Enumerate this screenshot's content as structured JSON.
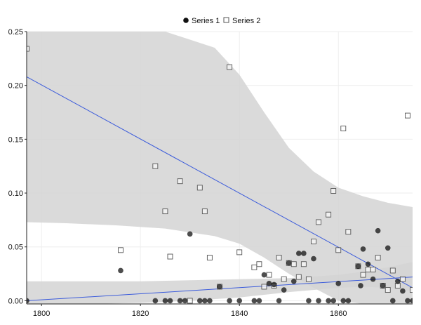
{
  "chart_data": {
    "type": "scatter",
    "legend_position": "top-center",
    "grid": true,
    "xlim": [
      1797,
      1875
    ],
    "ylim": [
      -0.003,
      0.25
    ],
    "x_ticks": [
      1800,
      1820,
      1840,
      1860
    ],
    "y_ticks": [
      0.0,
      0.05,
      0.1,
      0.15,
      0.2,
      0.25
    ],
    "x_tick_labels": [
      "1800",
      "1820",
      "1840",
      "1860"
    ],
    "y_tick_labels": [
      "0.00",
      "0.05",
      "0.10",
      "0.15",
      "0.20",
      "0.25"
    ],
    "colors": {
      "band": "#d3d3d3",
      "line": "#3b5bdb",
      "series1": "#111111",
      "series2_stroke": "#555555"
    },
    "series": [
      {
        "name": "Series 1",
        "marker": "filled-circle",
        "points": [
          [
            1797,
            0.0
          ],
          [
            1816,
            0.028
          ],
          [
            1823,
            0.0
          ],
          [
            1825,
            0.0
          ],
          [
            1826,
            0.0
          ],
          [
            1828,
            0.0
          ],
          [
            1829,
            0.0
          ],
          [
            1830,
            0.062
          ],
          [
            1832,
            0.0
          ],
          [
            1833,
            0.0
          ],
          [
            1834,
            0.0
          ],
          [
            1836,
            0.013
          ],
          [
            1838,
            0.0
          ],
          [
            1840,
            0.0
          ],
          [
            1843,
            0.0
          ],
          [
            1844,
            0.0
          ],
          [
            1845,
            0.024
          ],
          [
            1846,
            0.016
          ],
          [
            1847,
            0.015
          ],
          [
            1848,
            0.0
          ],
          [
            1849,
            0.01
          ],
          [
            1850,
            0.035
          ],
          [
            1851,
            0.018
          ],
          [
            1852,
            0.044
          ],
          [
            1853,
            0.044
          ],
          [
            1854,
            0.0
          ],
          [
            1855,
            0.039
          ],
          [
            1856,
            0.0
          ],
          [
            1858,
            0.0
          ],
          [
            1859,
            0.0
          ],
          [
            1860,
            0.016
          ],
          [
            1861,
            0.0
          ],
          [
            1862,
            0.0
          ],
          [
            1864,
            0.032
          ],
          [
            1864.5,
            0.014
          ],
          [
            1865,
            0.048
          ],
          [
            1866,
            0.034
          ],
          [
            1867,
            0.02
          ],
          [
            1868,
            0.065
          ],
          [
            1869,
            0.014
          ],
          [
            1870,
            0.049
          ],
          [
            1871,
            0.0
          ],
          [
            1872,
            0.018
          ],
          [
            1873,
            0.009
          ],
          [
            1874,
            0.0
          ],
          [
            1875,
            0.0
          ]
        ]
      },
      {
        "name": "Series 2",
        "marker": "open-square",
        "points": [
          [
            1797,
            0.234
          ],
          [
            1816,
            0.047
          ],
          [
            1823,
            0.125
          ],
          [
            1825,
            0.083
          ],
          [
            1826,
            0.041
          ],
          [
            1828,
            0.111
          ],
          [
            1830,
            0.0
          ],
          [
            1832,
            0.105
          ],
          [
            1833,
            0.083
          ],
          [
            1834,
            0.04
          ],
          [
            1836,
            0.013
          ],
          [
            1838,
            0.217
          ],
          [
            1840,
            0.045
          ],
          [
            1843,
            0.031
          ],
          [
            1844,
            0.034
          ],
          [
            1845,
            0.013
          ],
          [
            1846,
            0.024
          ],
          [
            1847,
            0.014
          ],
          [
            1848,
            0.04
          ],
          [
            1849,
            0.02
          ],
          [
            1850,
            0.035
          ],
          [
            1851,
            0.034
          ],
          [
            1852,
            0.022
          ],
          [
            1853,
            0.034
          ],
          [
            1854,
            0.02
          ],
          [
            1855,
            0.055
          ],
          [
            1856,
            0.073
          ],
          [
            1858,
            0.08
          ],
          [
            1859,
            0.102
          ],
          [
            1860,
            0.047
          ],
          [
            1861,
            0.16
          ],
          [
            1862,
            0.064
          ],
          [
            1864,
            0.032
          ],
          [
            1865,
            0.024
          ],
          [
            1866,
            0.029
          ],
          [
            1867,
            0.029
          ],
          [
            1868,
            0.04
          ],
          [
            1869,
            0.014
          ],
          [
            1870,
            0.01
          ],
          [
            1871,
            0.028
          ],
          [
            1872,
            0.014
          ],
          [
            1873,
            0.02
          ],
          [
            1874,
            0.172
          ],
          [
            1875,
            0.01
          ]
        ]
      }
    ],
    "trend_lines": [
      {
        "series": "Series 2",
        "points": [
          [
            1797,
            0.208
          ],
          [
            1875,
            0.012
          ]
        ],
        "band_x": [
          1797,
          1805,
          1815,
          1825,
          1835,
          1840,
          1845,
          1850,
          1855,
          1860,
          1865,
          1870,
          1875
        ],
        "band_upper": [
          0.25,
          0.25,
          0.25,
          0.25,
          0.235,
          0.21,
          0.175,
          0.142,
          0.12,
          0.105,
          0.097,
          0.091,
          0.087
        ],
        "band_lower": [
          0.073,
          0.072,
          0.07,
          0.067,
          0.06,
          0.053,
          0.04,
          0.025,
          0.012,
          0.0,
          -0.003,
          -0.003,
          -0.003
        ]
      },
      {
        "series": "Series 1",
        "points": [
          [
            1797,
            0.0
          ],
          [
            1875,
            0.022
          ]
        ],
        "band_x": [
          1797,
          1810,
          1820,
          1830,
          1840,
          1850,
          1860,
          1865,
          1870,
          1875
        ],
        "band_upper": [
          0.018,
          0.018,
          0.018,
          0.019,
          0.02,
          0.021,
          0.024,
          0.027,
          0.031,
          0.036
        ],
        "band_lower": [
          -0.003,
          -0.003,
          -0.002,
          0.0,
          0.003,
          0.008,
          0.012,
          0.013,
          0.012,
          0.009
        ]
      }
    ]
  }
}
